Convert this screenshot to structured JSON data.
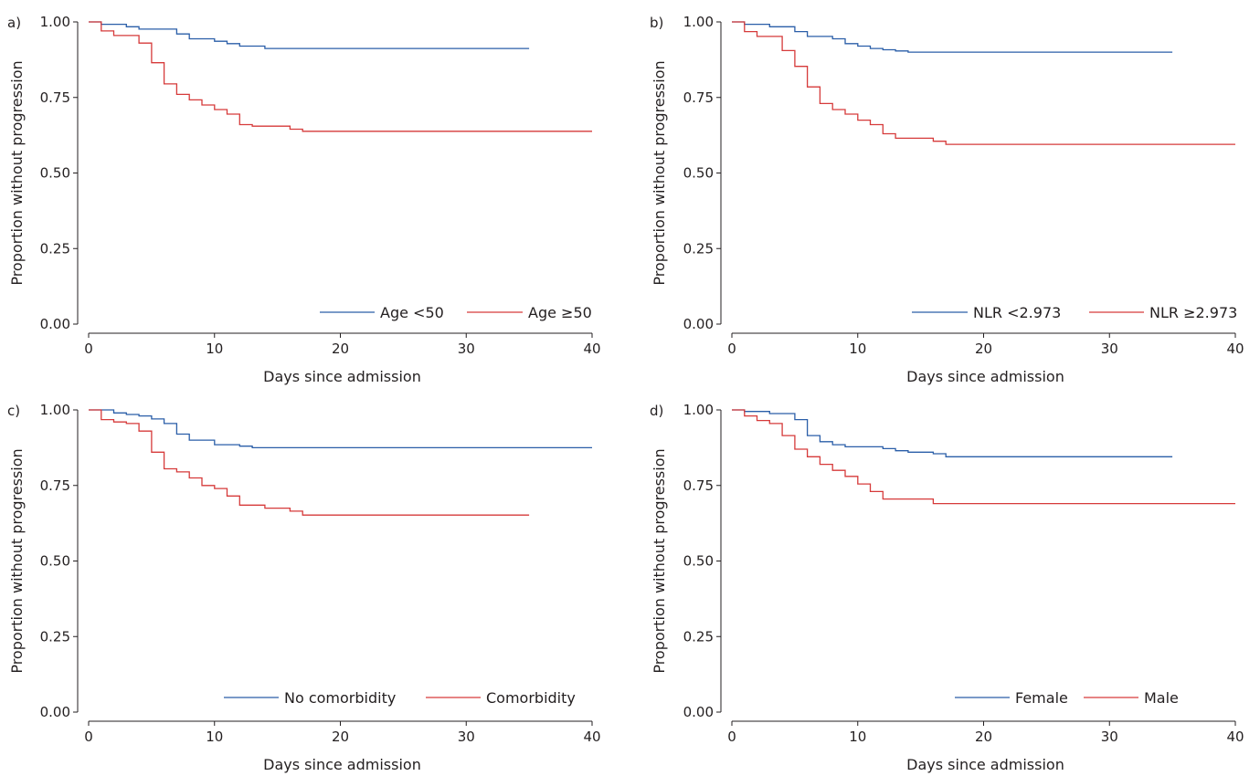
{
  "chart_data": [
    {
      "type": "line",
      "step": true,
      "panel_label": "a)",
      "xlabel": "Days since admission",
      "ylabel": "Proportion without progression",
      "xlim": [
        0,
        40
      ],
      "ylim": [
        0,
        1
      ],
      "xticks": [
        0,
        10,
        20,
        30,
        40
      ],
      "yticks": [
        0,
        0.25,
        0.5,
        0.75,
        1
      ],
      "ytick_labels": [
        "0.00",
        "0.25",
        "0.50",
        "0.75",
        "1.00"
      ],
      "grid": false,
      "legend_position": "bottom-right",
      "series": [
        {
          "name": "Age <50",
          "color": "#2a5ea8",
          "x": [
            0,
            1,
            3,
            4,
            7,
            8,
            10,
            11,
            12,
            14,
            35
          ],
          "y": [
            1.0,
            0.992,
            0.984,
            0.976,
            0.96,
            0.944,
            0.936,
            0.928,
            0.92,
            0.912,
            0.912
          ]
        },
        {
          "name": "Age ≥50",
          "color": "#d63a3a",
          "x": [
            0,
            1,
            2,
            4,
            5,
            6,
            7,
            8,
            9,
            10,
            11,
            12,
            13,
            16,
            17,
            40
          ],
          "y": [
            1.0,
            0.97,
            0.955,
            0.93,
            0.865,
            0.795,
            0.76,
            0.742,
            0.725,
            0.71,
            0.695,
            0.66,
            0.655,
            0.645,
            0.638,
            0.638
          ]
        }
      ]
    },
    {
      "type": "line",
      "step": true,
      "panel_label": "b)",
      "xlabel": "Days since admission",
      "ylabel": "Proportion without progression",
      "xlim": [
        0,
        40
      ],
      "ylim": [
        0,
        1
      ],
      "xticks": [
        0,
        10,
        20,
        30,
        40
      ],
      "yticks": [
        0,
        0.25,
        0.5,
        0.75,
        1
      ],
      "ytick_labels": [
        "0.00",
        "0.25",
        "0.50",
        "0.75",
        "1.00"
      ],
      "grid": false,
      "legend_position": "bottom-right",
      "series": [
        {
          "name": "NLR <2.973",
          "color": "#2a5ea8",
          "x": [
            0,
            1,
            3,
            5,
            6,
            8,
            9,
            10,
            11,
            12,
            13,
            14,
            35
          ],
          "y": [
            1.0,
            0.992,
            0.984,
            0.968,
            0.952,
            0.944,
            0.928,
            0.92,
            0.912,
            0.908,
            0.904,
            0.9,
            0.9
          ]
        },
        {
          "name": "NLR ≥2.973",
          "color": "#d63a3a",
          "x": [
            0,
            1,
            2,
            4,
            5,
            6,
            7,
            8,
            9,
            10,
            11,
            12,
            13,
            16,
            17,
            40
          ],
          "y": [
            1.0,
            0.968,
            0.952,
            0.905,
            0.853,
            0.785,
            0.73,
            0.71,
            0.695,
            0.675,
            0.66,
            0.63,
            0.615,
            0.605,
            0.595,
            0.595
          ]
        }
      ]
    },
    {
      "type": "line",
      "step": true,
      "panel_label": "c)",
      "xlabel": "Days since admission",
      "ylabel": "Proportion without progression",
      "xlim": [
        0,
        40
      ],
      "ylim": [
        0,
        1
      ],
      "xticks": [
        0,
        10,
        20,
        30,
        40
      ],
      "yticks": [
        0,
        0.25,
        0.5,
        0.75,
        1
      ],
      "ytick_labels": [
        "0.00",
        "0.25",
        "0.50",
        "0.75",
        "1.00"
      ],
      "grid": false,
      "legend_position": "bottom-right",
      "series": [
        {
          "name": "No comorbidity",
          "color": "#2a5ea8",
          "x": [
            0,
            2,
            3,
            4,
            5,
            6,
            7,
            8,
            10,
            12,
            13,
            40
          ],
          "y": [
            1.0,
            0.99,
            0.985,
            0.98,
            0.97,
            0.955,
            0.92,
            0.9,
            0.885,
            0.88,
            0.875,
            0.875
          ]
        },
        {
          "name": "Comorbidity",
          "color": "#d63a3a",
          "x": [
            0,
            1,
            2,
            3,
            4,
            5,
            6,
            7,
            8,
            9,
            10,
            11,
            12,
            14,
            16,
            17,
            35
          ],
          "y": [
            1.0,
            0.968,
            0.96,
            0.955,
            0.93,
            0.86,
            0.805,
            0.795,
            0.775,
            0.75,
            0.74,
            0.715,
            0.685,
            0.675,
            0.665,
            0.652,
            0.652
          ]
        }
      ]
    },
    {
      "type": "line",
      "step": true,
      "panel_label": "d)",
      "xlabel": "Days since admission",
      "ylabel": "Proportion without progression",
      "xlim": [
        0,
        40
      ],
      "ylim": [
        0,
        1
      ],
      "xticks": [
        0,
        10,
        20,
        30,
        40
      ],
      "yticks": [
        0,
        0.25,
        0.5,
        0.75,
        1
      ],
      "ytick_labels": [
        "0.00",
        "0.25",
        "0.50",
        "0.75",
        "1.00"
      ],
      "grid": false,
      "legend_position": "bottom-right",
      "series": [
        {
          "name": "Female",
          "color": "#2a5ea8",
          "x": [
            0,
            1,
            3,
            5,
            6,
            7,
            8,
            9,
            12,
            13,
            14,
            16,
            17,
            35
          ],
          "y": [
            1.0,
            0.995,
            0.988,
            0.968,
            0.915,
            0.895,
            0.885,
            0.878,
            0.872,
            0.865,
            0.86,
            0.855,
            0.845,
            0.845
          ]
        },
        {
          "name": "Male",
          "color": "#d63a3a",
          "x": [
            0,
            1,
            2,
            3,
            4,
            5,
            6,
            7,
            8,
            9,
            10,
            11,
            12,
            16,
            40
          ],
          "y": [
            1.0,
            0.98,
            0.965,
            0.955,
            0.915,
            0.87,
            0.845,
            0.82,
            0.8,
            0.78,
            0.755,
            0.73,
            0.705,
            0.69,
            0.69
          ]
        }
      ]
    }
  ]
}
